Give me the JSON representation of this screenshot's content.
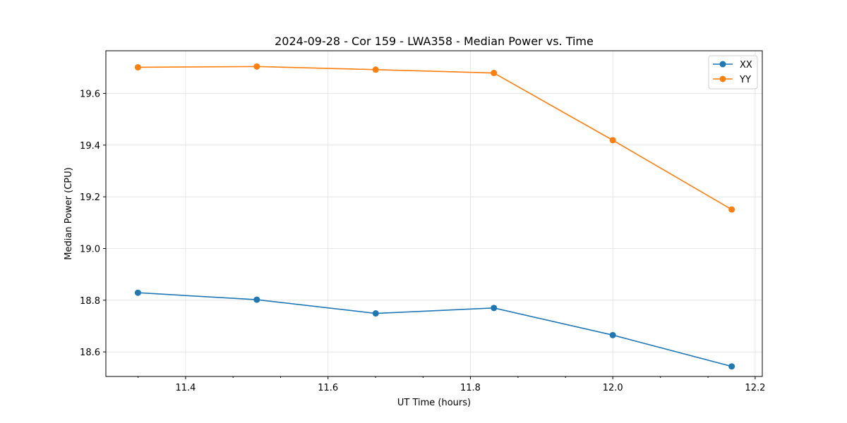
{
  "chart_data": {
    "type": "line",
    "title": "2024-09-28 - Cor 159 - LWA358 - Median Power vs. Time",
    "xlabel": "UT Time (hours)",
    "ylabel": "Median Power (CPU)",
    "xlim": [
      11.288,
      12.21
    ],
    "ylim": [
      18.505,
      19.765
    ],
    "xticks": [
      11.4,
      11.6,
      11.8,
      12.0,
      12.2
    ],
    "xtick_labels": [
      "11.4",
      "11.6",
      "11.8",
      "12.0",
      "12.2"
    ],
    "xminor_step": 0.0667,
    "yticks": [
      18.6,
      18.8,
      19.0,
      19.2,
      19.4,
      19.6
    ],
    "ytick_labels": [
      "18.6",
      "18.8",
      "19.0",
      "19.2",
      "19.4",
      "19.6"
    ],
    "grid": true,
    "legend_position": "top-right",
    "x": [
      11.333,
      11.5,
      11.667,
      11.833,
      12.0,
      12.167
    ],
    "series": [
      {
        "name": "XX",
        "color": "#1f77b4",
        "marker": "circle",
        "values": [
          18.829,
          18.802,
          18.749,
          18.77,
          18.665,
          18.544
        ]
      },
      {
        "name": "YY",
        "color": "#ff7f0e",
        "marker": "circle",
        "values": [
          19.701,
          19.704,
          19.692,
          19.679,
          19.419,
          19.151
        ]
      }
    ]
  }
}
